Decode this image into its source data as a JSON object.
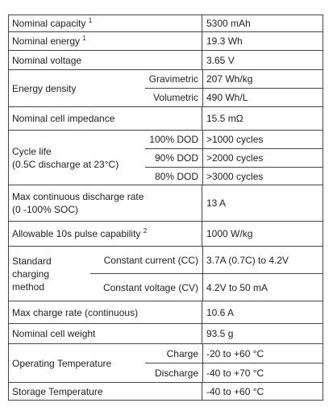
{
  "table": {
    "rows": [
      {
        "label": [
          "Nominal capacity"
        ],
        "sup": "1",
        "value": "5300 mAh"
      },
      {
        "label": [
          "Nominal energy"
        ],
        "sup": "1",
        "value": "19.3 Wh"
      },
      {
        "label": [
          "Nominal voltage"
        ],
        "value": "3.65 V"
      },
      {
        "label": [
          "Energy density"
        ],
        "sub": [
          {
            "label": "Gravimetric",
            "value": "207 Wh/kg"
          },
          {
            "label": "Volumetric",
            "value": "490 Wh/L"
          }
        ]
      },
      {
        "label": [
          "Nominal cell impedance"
        ],
        "value": "15.5 mΩ"
      },
      {
        "label": [
          "Cycle life",
          "(0.5C discharge at 23°C)"
        ],
        "sub": [
          {
            "label": "100% DOD",
            "value": ">1000 cycles"
          },
          {
            "label": "90% DOD",
            "value": ">2000 cycles"
          },
          {
            "label": "80% DOD",
            "value": ">3000 cycles"
          }
        ]
      },
      {
        "label": [
          "Max continuous discharge rate",
          "(0 -100% SOC)"
        ],
        "value": "13 A"
      },
      {
        "label": [
          "Allowable 10s pulse capability"
        ],
        "sup": "2",
        "value": "1000 W/kg"
      },
      {
        "label": [
          "Standard",
          "charging",
          "method"
        ],
        "sub": [
          {
            "label": "Constant current (CC)",
            "value": "3.7A (0.7C) to 4.2V"
          },
          {
            "label": "Constant voltage (CV)",
            "value": "4.2V to 50 mA"
          }
        ]
      },
      {
        "label": [
          "Max charge rate (continuous)"
        ],
        "value": "10.6 A"
      },
      {
        "label": [
          "Nominal cell weight"
        ],
        "value": "93.5 g"
      },
      {
        "label": [
          "Operating Temperature"
        ],
        "sub": [
          {
            "label": "Charge",
            "value": "-20 to +60 °C"
          },
          {
            "label": "Discharge",
            "value": "-40 to +70 °C"
          }
        ]
      },
      {
        "label": [
          "Storage Temperature"
        ],
        "value": "-40 to +60 °C"
      }
    ]
  }
}
